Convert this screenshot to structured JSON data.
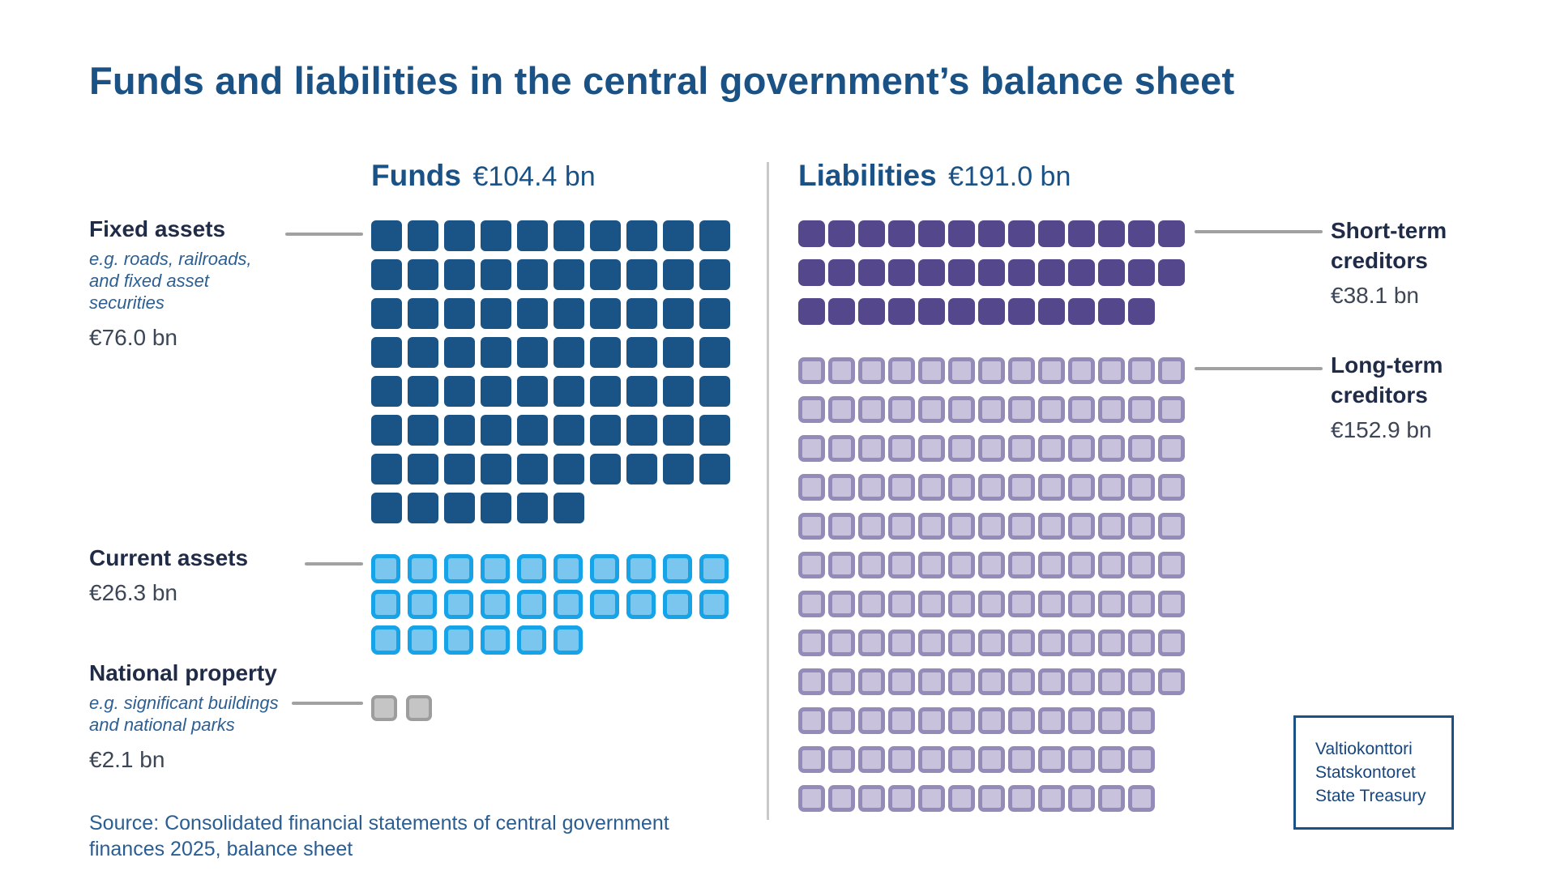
{
  "title": "Funds and liabilities in the central government’s balance sheet",
  "colors": {
    "heading_blue": "#1A5286",
    "label_navy": "#1F2B47",
    "amount_gray": "#3D4656",
    "italic_blue": "#2D5F92",
    "source_blue": "#2A5E93",
    "connector_gray": "#A1A1A1",
    "divider_gray": "#C9C9C9",
    "fixed_assets_fill": "#1A5385",
    "current_assets_fill": "#7AC6EF",
    "current_assets_border": "#16A3E8",
    "national_property_fill": "#C5C5C5",
    "national_property_border": "#9D9D9D",
    "short_term_fill": "#55478C",
    "long_term_fill": "#C8C2DD",
    "long_term_border": "#958BB9"
  },
  "chart_data": {
    "type": "waffle",
    "title": "Funds and liabilities in the central government’s balance sheet",
    "unit_per_square_bn": 1,
    "legend_position": "side-labels",
    "groups": [
      {
        "id": "funds",
        "title": "Funds",
        "total_label": "€104.4 bn",
        "total_value_bn": 104.4,
        "segments": [
          {
            "id": "fixed-assets",
            "label": "Fixed assets",
            "description_lines": [
              "e.g. roads, railroads,",
              "and fixed asset",
              "securities"
            ],
            "amount": "€76.0 bn",
            "value_bn": 76.0,
            "squares": 76,
            "rows": [
              10,
              10,
              10,
              10,
              10,
              10,
              10,
              6
            ],
            "square_style": "solid",
            "color_fill": "#1A5385",
            "color_border": "#1A5385"
          },
          {
            "id": "current-assets",
            "label": "Current assets",
            "description_lines": [],
            "amount": "€26.3 bn",
            "value_bn": 26.3,
            "squares": 26,
            "rows": [
              10,
              10,
              6
            ],
            "square_style": "outline",
            "color_fill": "#7AC6EF",
            "color_border": "#16A3E8"
          },
          {
            "id": "national-property",
            "label": "National property",
            "description_lines": [
              "e.g. significant buildings",
              "and national parks"
            ],
            "amount": "€2.1 bn",
            "value_bn": 2.1,
            "squares": 2,
            "rows": [
              2
            ],
            "square_style": "outline",
            "color_fill": "#C5C5C5",
            "color_border": "#9D9D9D"
          }
        ]
      },
      {
        "id": "liabilities",
        "title": "Liabilities",
        "total_label": "€191.0 bn",
        "total_value_bn": 191.0,
        "segments": [
          {
            "id": "short-term-creditors",
            "label_lines": [
              "Short-term",
              "creditors"
            ],
            "amount": "€38.1 bn",
            "value_bn": 38.1,
            "squares": 38,
            "rows": [
              13,
              13,
              12
            ],
            "square_style": "solid",
            "color_fill": "#55478C",
            "color_border": "#55478C"
          },
          {
            "id": "long-term-creditors",
            "label_lines": [
              "Long-term",
              "creditors"
            ],
            "amount": "€152.9 bn",
            "value_bn": 152.9,
            "squares": 153,
            "rows": [
              13,
              13,
              13,
              13,
              13,
              13,
              13,
              13,
              13,
              12,
              12,
              12
            ],
            "square_style": "outline",
            "color_fill": "#C8C2DD",
            "color_border": "#958BB9"
          }
        ]
      }
    ]
  },
  "logo": {
    "lines": [
      "Valtiokonttori",
      "Statskontoret",
      "State Treasury"
    ]
  },
  "source": {
    "lines": [
      "Source: Consolidated financial statements of central government",
      "finances 2025, balance sheet"
    ]
  }
}
